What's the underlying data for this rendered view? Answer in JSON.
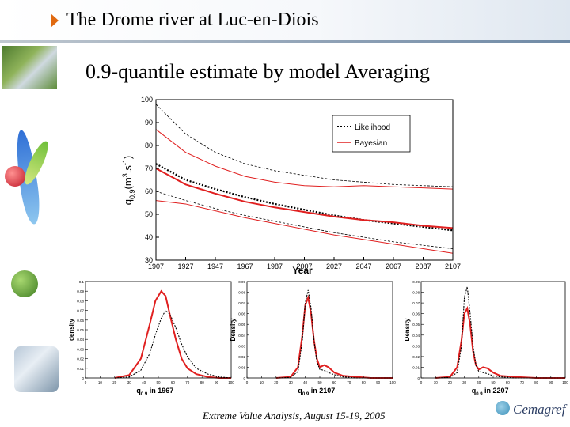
{
  "slide": {
    "title": "The Drome river at Luc-en-Diois",
    "subtitle": "0.9-quantile estimate by model Averaging",
    "footer": "Extreme Value Analysis, August 15-19, 2005",
    "logo_text": "Cemagref"
  },
  "colors": {
    "likelihood": "#000000",
    "bayesian": "#e02020",
    "accent": "#e06a10"
  },
  "chart_data": [
    {
      "type": "line",
      "xlabel": "Year",
      "ylabel_html": "q0.9 (m3.s-1)",
      "ylabel_parts": {
        "q": "q",
        "sub": "0.9",
        "unit": "(m",
        "sup1": "3",
        "mid": ".s",
        "sup2": "-1",
        "end": ")"
      },
      "xlim": [
        1907,
        2107
      ],
      "ylim": [
        30,
        100
      ],
      "xticks": [
        1907,
        1927,
        1947,
        1967,
        1987,
        2007,
        2027,
        2047,
        2067,
        2087,
        2107
      ],
      "yticks": [
        30,
        40,
        50,
        60,
        70,
        80,
        90,
        100
      ],
      "legend": {
        "placement": "top-right",
        "entries": [
          "Likelihood",
          "Bayesian"
        ]
      },
      "x": [
        1907,
        1927,
        1947,
        1967,
        1987,
        2007,
        2027,
        2047,
        2067,
        2087,
        2107
      ],
      "series": [
        {
          "name": "Likelihood",
          "style": "dotted",
          "role": "estimate",
          "values": [
            72,
            65,
            61,
            57.5,
            54.5,
            52,
            49.5,
            47.5,
            46,
            44.5,
            43
          ]
        },
        {
          "style": "dotted-thin",
          "role": "upper",
          "values": [
            98,
            85,
            77,
            72,
            69,
            67,
            65,
            64,
            63,
            62.5,
            62
          ]
        },
        {
          "style": "dotted-thin",
          "role": "lower",
          "values": [
            60,
            56,
            52.5,
            49.5,
            47,
            44.5,
            42,
            40,
            38,
            36.5,
            35
          ]
        },
        {
          "name": "Bayesian",
          "style": "solid",
          "role": "estimate",
          "values": [
            70,
            63,
            59,
            55.5,
            53,
            51,
            49,
            47.5,
            46.5,
            45,
            44
          ]
        },
        {
          "style": "solid-thin",
          "role": "upper",
          "values": [
            87,
            77,
            71,
            66.5,
            64,
            62.5,
            62,
            62.5,
            62,
            61.5,
            61
          ]
        },
        {
          "style": "solid-thin",
          "role": "lower",
          "values": [
            56,
            54.5,
            51.5,
            48.5,
            46,
            43.5,
            41,
            39,
            37,
            35,
            33
          ]
        }
      ]
    },
    {
      "type": "line",
      "xlabel_parts": {
        "q": "q",
        "sub": "0.9",
        "rest": " in 1967"
      },
      "ylabel": "density",
      "xlim": [
        0,
        100
      ],
      "ylim": [
        0,
        0.1
      ],
      "xticks": [
        0,
        10,
        20,
        30,
        40,
        50,
        60,
        70,
        80,
        90,
        100
      ],
      "yticks": [
        0,
        0.01,
        0.02,
        0.03,
        0.04,
        0.05,
        0.06,
        0.07,
        0.08,
        0.09,
        0.1
      ],
      "ytick_labels": [
        "0",
        "0.01",
        "0.02",
        "0.03",
        "0.04",
        "0.05",
        "0.06",
        "0.07",
        "0.08",
        "0.09",
        "0.1"
      ],
      "x": [
        20,
        30,
        38,
        44,
        48,
        52,
        55,
        58,
        62,
        66,
        70,
        76,
        84,
        92,
        100
      ],
      "series": [
        {
          "style": "solid",
          "values": [
            0,
            0.003,
            0.02,
            0.055,
            0.08,
            0.09,
            0.085,
            0.065,
            0.04,
            0.02,
            0.01,
            0.004,
            0.001,
            0,
            0
          ]
        },
        {
          "style": "dotted",
          "values": [
            0,
            0.001,
            0.008,
            0.025,
            0.045,
            0.062,
            0.07,
            0.066,
            0.052,
            0.035,
            0.022,
            0.01,
            0.004,
            0.001,
            0
          ]
        }
      ]
    },
    {
      "type": "line",
      "xlabel_parts": {
        "q": "q",
        "sub": "0.9",
        "rest": " in 2107"
      },
      "ylabel": "Density",
      "xlim": [
        0,
        100
      ],
      "ylim": [
        0,
        0.09
      ],
      "xticks": [
        0,
        10,
        20,
        30,
        40,
        50,
        60,
        70,
        80,
        90,
        100
      ],
      "yticks": [
        0,
        0.01,
        0.02,
        0.03,
        0.04,
        0.05,
        0.06,
        0.07,
        0.08,
        0.09
      ],
      "ytick_labels": [
        "0",
        "0.01",
        "0.02",
        "0.03",
        "0.04",
        "0.05",
        "0.06",
        "0.07",
        "0.08",
        "0.09"
      ],
      "x": [
        20,
        30,
        35,
        38,
        40,
        42,
        44,
        46,
        48,
        50,
        53,
        56,
        60,
        66,
        75,
        85,
        100
      ],
      "series": [
        {
          "style": "solid",
          "values": [
            0,
            0.001,
            0.01,
            0.04,
            0.068,
            0.075,
            0.06,
            0.035,
            0.018,
            0.01,
            0.012,
            0.01,
            0.005,
            0.002,
            0.001,
            0,
            0
          ]
        },
        {
          "style": "dotted",
          "values": [
            0,
            0.0005,
            0.006,
            0.035,
            0.07,
            0.082,
            0.065,
            0.035,
            0.015,
            0.008,
            0.007,
            0.005,
            0.003,
            0.001,
            0,
            0,
            0
          ]
        }
      ]
    },
    {
      "type": "line",
      "xlabel_parts": {
        "q": "q",
        "sub": "0.9",
        "rest": " in 2207"
      },
      "ylabel": "Density",
      "xlim": [
        0,
        100
      ],
      "ylim": [
        0,
        0.09
      ],
      "xticks": [
        0,
        10,
        20,
        30,
        40,
        50,
        60,
        70,
        80,
        90,
        100
      ],
      "yticks": [
        0,
        0.01,
        0.02,
        0.03,
        0.04,
        0.05,
        0.06,
        0.07,
        0.08,
        0.09
      ],
      "ytick_labels": [
        "0",
        "0.01",
        "0.02",
        "0.03",
        "0.04",
        "0.05",
        "0.06",
        "0.07",
        "0.08",
        "0.09"
      ],
      "x": [
        10,
        20,
        25,
        28,
        30,
        32,
        34,
        36,
        38,
        40,
        43,
        46,
        50,
        55,
        65,
        80,
        100
      ],
      "series": [
        {
          "style": "solid",
          "values": [
            0,
            0.001,
            0.01,
            0.035,
            0.06,
            0.065,
            0.05,
            0.025,
            0.012,
            0.008,
            0.01,
            0.009,
            0.005,
            0.002,
            0.001,
            0,
            0
          ]
        },
        {
          "style": "dotted",
          "values": [
            0,
            0.0005,
            0.005,
            0.03,
            0.075,
            0.085,
            0.06,
            0.03,
            0.012,
            0.006,
            0.005,
            0.004,
            0.002,
            0.001,
            0,
            0,
            0
          ]
        }
      ]
    }
  ]
}
